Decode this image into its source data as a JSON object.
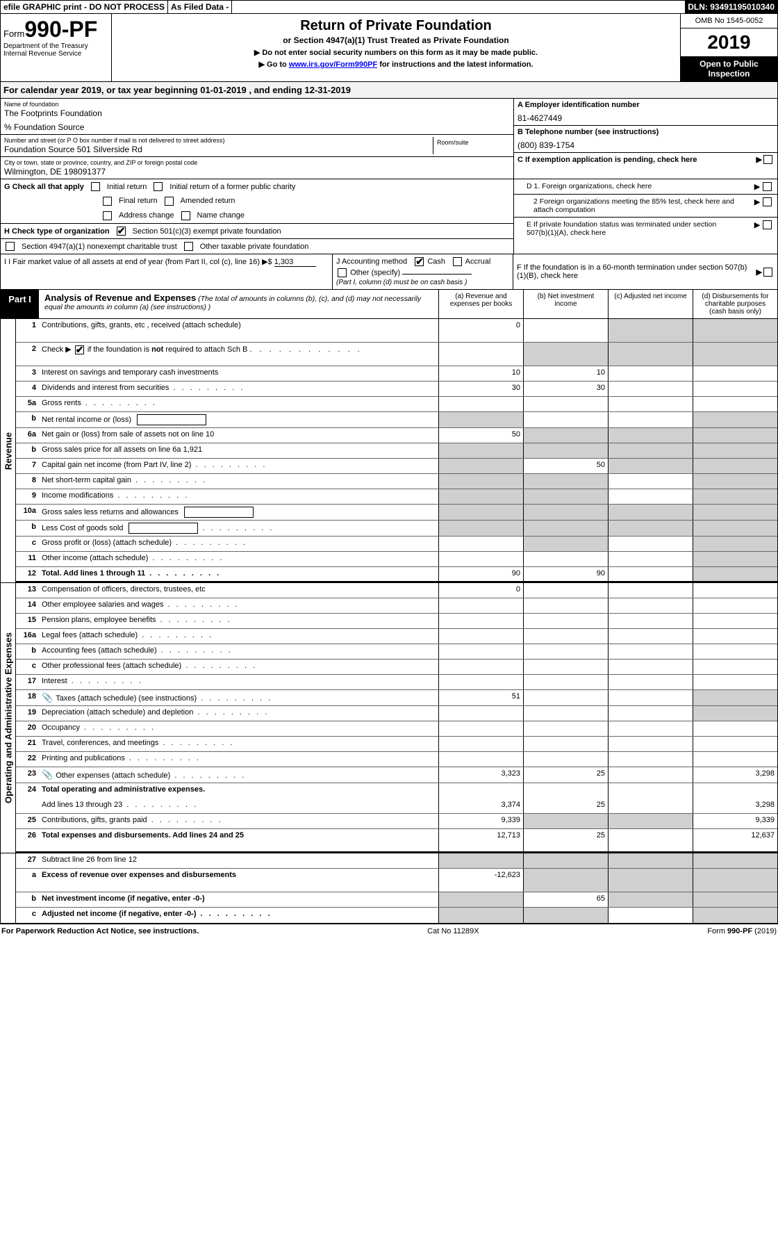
{
  "top": {
    "efile": "efile GRAPHIC print - DO NOT PROCESS",
    "asfiled": "As Filed Data -",
    "dln": "DLN: 93491195010340"
  },
  "header": {
    "form_prefix": "Form",
    "form_num": "990-PF",
    "dept": "Department of the Treasury",
    "irs": "Internal Revenue Service",
    "title": "Return of Private Foundation",
    "subtitle": "or Section 4947(a)(1) Trust Treated as Private Foundation",
    "note1": "▶ Do not enter social security numbers on this form as it may be made public.",
    "note2_pre": "▶ Go to ",
    "note2_link": "www.irs.gov/Form990PF",
    "note2_post": " for instructions and the latest information.",
    "omb": "OMB No 1545-0052",
    "year": "2019",
    "open": "Open to Public Inspection"
  },
  "cal_year": "For calendar year 2019, or tax year beginning 01-01-2019                       , and ending 12-31-2019",
  "info": {
    "name_label": "Name of foundation",
    "name": "The Footprints Foundation",
    "care_of": "% Foundation Source",
    "addr_label": "Number and street (or P O  box number if mail is not delivered to street address)",
    "addr": "Foundation Source 501 Silverside Rd",
    "room_label": "Room/suite",
    "city_label": "City or town, state or province, country, and ZIP or foreign postal code",
    "city": "Wilmington, DE  198091377",
    "a_label": "A Employer identification number",
    "a_val": "81-4627449",
    "b_label": "B Telephone number (see instructions)",
    "b_val": "(800) 839-1754",
    "c_label": "C If exemption application is pending, check here"
  },
  "checks": {
    "g_label": "G Check all that apply",
    "g_opts": [
      "Initial return",
      "Initial return of a former public charity",
      "Final return",
      "Amended return",
      "Address change",
      "Name change"
    ],
    "h_label": "H Check type of organization",
    "h_opt1": "Section 501(c)(3) exempt private foundation",
    "h_opt2": "Section 4947(a)(1) nonexempt charitable trust",
    "h_opt3": "Other taxable private foundation",
    "d1": "D 1. Foreign organizations, check here",
    "d2": "2 Foreign organizations meeting the 85% test, check here and attach computation",
    "e": "E  If private foundation status was terminated under section 507(b)(1)(A), check here",
    "f": "F  If the foundation is in a 60-month termination under section 507(b)(1)(B), check here"
  },
  "ijf": {
    "i_label": "I Fair market value of all assets at end of year (from Part II, col  (c), line 16) ▶$ ",
    "i_val": "1,303",
    "j_label": "J Accounting method",
    "j_cash": "Cash",
    "j_accrual": "Accrual",
    "j_other": "Other (specify)",
    "j_note": "(Part I, column (d) must be on cash basis )"
  },
  "part1": {
    "label": "Part I",
    "title": "Analysis of Revenue and Expenses",
    "desc": " (The total of amounts in columns (b), (c), and (d) may not necessarily equal the amounts in column (a) (see instructions) )",
    "col_a": "(a)   Revenue and expenses per books",
    "col_b": "(b)  Net investment income",
    "col_c": "(c)  Adjusted net income",
    "col_d": "(d)  Disbursements for charitable purposes (cash basis only)"
  },
  "vert": {
    "rev": "Revenue",
    "exp": "Operating and Administrative Expenses"
  },
  "rows": [
    {
      "n": "1",
      "d": "Contributions, gifts, grants, etc , received (attach schedule)",
      "a": "0",
      "shade_c": true,
      "shade_d": true,
      "tall": true
    },
    {
      "n": "2",
      "d": "Check ▶ ☑ if the foundation is not required to attach Sch  B",
      "shade_a": false,
      "shade_b": true,
      "shade_c": true,
      "shade_d": true,
      "tall": true,
      "has_check": true
    },
    {
      "n": "3",
      "d": "Interest on savings and temporary cash investments",
      "a": "10",
      "b": "10"
    },
    {
      "n": "4",
      "d": "Dividends and interest from securities",
      "a": "30",
      "b": "30",
      "dots": true
    },
    {
      "n": "5a",
      "d": "Gross rents",
      "dots": true
    },
    {
      "n": "b",
      "d": "Net rental income or (loss)",
      "inline": true,
      "shade_a": true,
      "shade_d": true
    },
    {
      "n": "6a",
      "d": "Net gain or (loss) from sale of assets not on line 10",
      "a": "50",
      "shade_b": true,
      "shade_c": true,
      "shade_d": true
    },
    {
      "n": "b",
      "d": "Gross sales price for all assets on line 6a               1,921",
      "inline2": true,
      "shade_a": true,
      "shade_b": true,
      "shade_c": true,
      "shade_d": true
    },
    {
      "n": "7",
      "d": "Capital gain net income (from Part IV, line 2)",
      "b": "50",
      "shade_a": true,
      "shade_c": true,
      "shade_d": true,
      "dots": true
    },
    {
      "n": "8",
      "d": "Net short-term capital gain",
      "shade_a": true,
      "shade_b": true,
      "shade_d": true,
      "dots": true
    },
    {
      "n": "9",
      "d": "Income modifications",
      "shade_a": true,
      "shade_b": true,
      "shade_d": true,
      "dots": true
    },
    {
      "n": "10a",
      "d": "Gross sales less returns and allowances",
      "inline": true,
      "shade_a": true,
      "shade_b": true,
      "shade_c": true,
      "shade_d": true
    },
    {
      "n": "b",
      "d": "Less  Cost of goods sold",
      "inline": true,
      "shade_a": true,
      "shade_b": true,
      "shade_c": true,
      "shade_d": true,
      "dots": true
    },
    {
      "n": "c",
      "d": "Gross profit or (loss) (attach schedule)",
      "shade_b": true,
      "shade_d": true,
      "dots": true
    },
    {
      "n": "11",
      "d": "Other income (attach schedule)",
      "shade_d": true,
      "dots": true
    },
    {
      "n": "12",
      "d": "Total. Add lines 1 through 11",
      "a": "90",
      "b": "90",
      "bold": true,
      "shade_d": true,
      "sep": true,
      "dots": true
    }
  ],
  "exp_rows": [
    {
      "n": "13",
      "d": "Compensation of officers, directors, trustees, etc",
      "a": "0"
    },
    {
      "n": "14",
      "d": "Other employee salaries and wages",
      "dots": true
    },
    {
      "n": "15",
      "d": "Pension plans, employee benefits",
      "dots": true
    },
    {
      "n": "16a",
      "d": "Legal fees (attach schedule)",
      "dots": true
    },
    {
      "n": "b",
      "d": "Accounting fees (attach schedule)",
      "dots": true
    },
    {
      "n": "c",
      "d": "Other professional fees (attach schedule)",
      "dots": true
    },
    {
      "n": "17",
      "d": "Interest",
      "dots": true
    },
    {
      "n": "18",
      "d": "Taxes (attach schedule) (see instructions)",
      "a": "51",
      "shade_d": true,
      "icon": true,
      "dots": true
    },
    {
      "n": "19",
      "d": "Depreciation (attach schedule) and depletion",
      "shade_d": true,
      "dots": true
    },
    {
      "n": "20",
      "d": "Occupancy",
      "dots": true
    },
    {
      "n": "21",
      "d": "Travel, conferences, and meetings",
      "dots": true
    },
    {
      "n": "22",
      "d": "Printing and publications",
      "dots": true
    },
    {
      "n": "23",
      "d": "Other expenses (attach schedule)",
      "a": "3,323",
      "b": "25",
      "d_val": "3,298",
      "icon": true,
      "dots": true
    },
    {
      "n": "24",
      "d": "Total operating and administrative expenses.",
      "bold": true,
      "no_border": true
    },
    {
      "n": "",
      "d": "Add lines 13 through 23",
      "a": "3,374",
      "b": "25",
      "d_val": "3,298",
      "dots": true
    },
    {
      "n": "25",
      "d": "Contributions, gifts, grants paid",
      "a": "9,339",
      "shade_b": true,
      "shade_c": true,
      "d_val": "9,339",
      "dots": true
    },
    {
      "n": "26",
      "d": "Total expenses and disbursements. Add lines 24 and 25",
      "a": "12,713",
      "b": "25",
      "d_val": "12,637",
      "bold": true,
      "sep": true,
      "tall": true
    }
  ],
  "net_rows": [
    {
      "n": "27",
      "d": "Subtract line 26 from line 12",
      "shade_a": true,
      "shade_b": true,
      "shade_c": true,
      "shade_d": true
    },
    {
      "n": "a",
      "d": "Excess of revenue over expenses and disbursements",
      "a": "-12,623",
      "bold": true,
      "shade_b": true,
      "shade_c": true,
      "shade_d": true,
      "tall": true
    },
    {
      "n": "b",
      "d": "Net investment income (if negative, enter -0-)",
      "b": "65",
      "bold": true,
      "shade_a": true,
      "shade_c": true,
      "shade_d": true
    },
    {
      "n": "c",
      "d": "Adjusted net income (if negative, enter -0-)",
      "bold": true,
      "shade_a": true,
      "shade_b": true,
      "shade_d": true,
      "dots": true
    }
  ],
  "footer": {
    "left": "For Paperwork Reduction Act Notice, see instructions.",
    "mid": "Cat  No  11289X",
    "right_pre": "Form ",
    "right_bold": "990-PF",
    "right_post": " (2019)"
  }
}
